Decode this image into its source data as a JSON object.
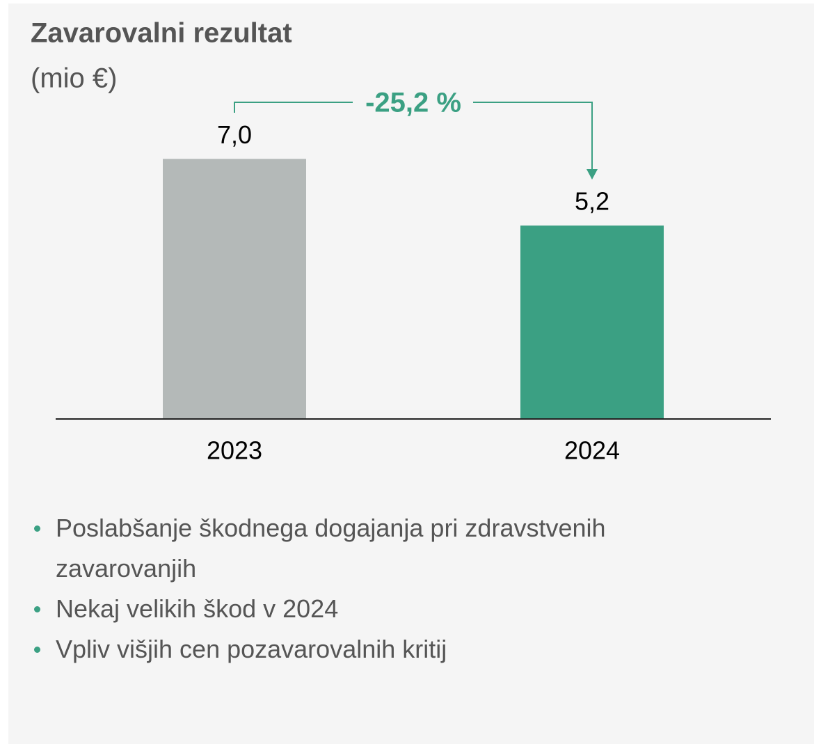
{
  "chart_data": {
    "type": "bar",
    "title": "Zavarovalni rezultat",
    "subtitle": "(mio €)",
    "categories": [
      "2023",
      "2024"
    ],
    "values": [
      7.0,
      5.2
    ],
    "value_labels": [
      "7,0",
      "5,2"
    ],
    "colors": [
      "#b4b9b8",
      "#3ba083"
    ],
    "ylim": [
      0,
      8
    ],
    "annotation": "-25,2 %"
  },
  "notes": [
    "Poslabšanje škodnega dogajanja pri zdravstvenih zavarovanjih",
    "Nekaj velikih škod v 2024",
    "Vpliv višjih cen pozavarovalnih kritij"
  ]
}
